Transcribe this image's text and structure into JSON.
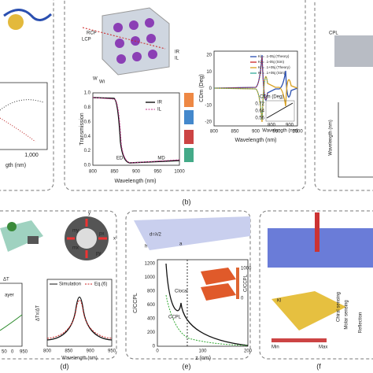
{
  "panel_a": {
    "tick": "1,000",
    "xlabel": "gth (nm)"
  },
  "panel_b": {
    "label": "(b)",
    "rcp": "RCP",
    "lcp": "LCP",
    "w": "W",
    "wi": "Wi",
    "ir": "IR",
    "il": "IL",
    "transmission": {
      "ylabel": "Transmission",
      "xlabel": "Wavelength (nm)",
      "xticks": [
        "800",
        "850",
        "900",
        "950",
        "1000"
      ],
      "yticks": [
        "0.0",
        "0.2",
        "0.4",
        "0.6",
        "0.8",
        "1.0"
      ],
      "legend": [
        "IR",
        "IL"
      ],
      "annotations": [
        "ED",
        "MD"
      ],
      "field_labels": [
        "H",
        "E",
        "H",
        "E"
      ]
    },
    "cd": {
      "ylabel": "CDm (Deg)",
      "xlabel": "Wavelength (nm)",
      "xticks": [
        "800",
        "850",
        "900",
        "950",
        "1000"
      ],
      "yticks": [
        "20",
        "10",
        "0",
        "-10",
        "-20"
      ],
      "legend": [
        "Ki = .1-05j (Theory)",
        "Ki = .1-05j (Sim)",
        "Ki = .1+05j (Theory)",
        "Ki = .1+05j (Sim)"
      ],
      "inset": {
        "ylabel": "CDm (Deg)",
        "yticks": [
          "0.72",
          "0.64",
          "0.56"
        ],
        "xticks": [
          "800",
          "900"
        ],
        "xlabel": "Wavelength (nm)"
      }
    }
  },
  "panel_c": {
    "cpl": "CPL",
    "ylabel": "Wavelength (nm)"
  },
  "panel_d": {
    "label": "(d)",
    "dt": "ΔT",
    "layer": "ayer",
    "my": "my",
    "mx": "mx",
    "px": "px",
    "py": "py",
    "x": "x",
    "y": "y",
    "left_xticks": [
      "50",
      "0",
      "950"
    ],
    "chart": {
      "legend": [
        "Simulation",
        "Eq.(6)"
      ],
      "ylabel": "ΔTx/ΔT",
      "xlabel": "Wavelength (nm)",
      "xticks": [
        "800",
        "850",
        "900",
        "950"
      ]
    }
  },
  "panel_e": {
    "label": "(e)",
    "d": "d=λ/2",
    "h": "h",
    "a": "a",
    "ylabel": "C/CCPL",
    "xlabel": "z (nm)",
    "yticks": [
      "0",
      "200",
      "400",
      "600",
      "800",
      "1000",
      "1200"
    ],
    "xticks": [
      "0",
      "100",
      "200"
    ],
    "c_local": "Clocal",
    "c_cpl": "CCPL",
    "inset": {
      "max": "1000",
      "min": "0",
      "label": "C/CCPL"
    }
  },
  "panel_f": {
    "label": "(f",
    "min": "Min",
    "max": "Max",
    "ki": "Kl",
    "reflection": "Reflection",
    "chiral": "Chiral sensing",
    "molar": "Molar sensing"
  }
}
